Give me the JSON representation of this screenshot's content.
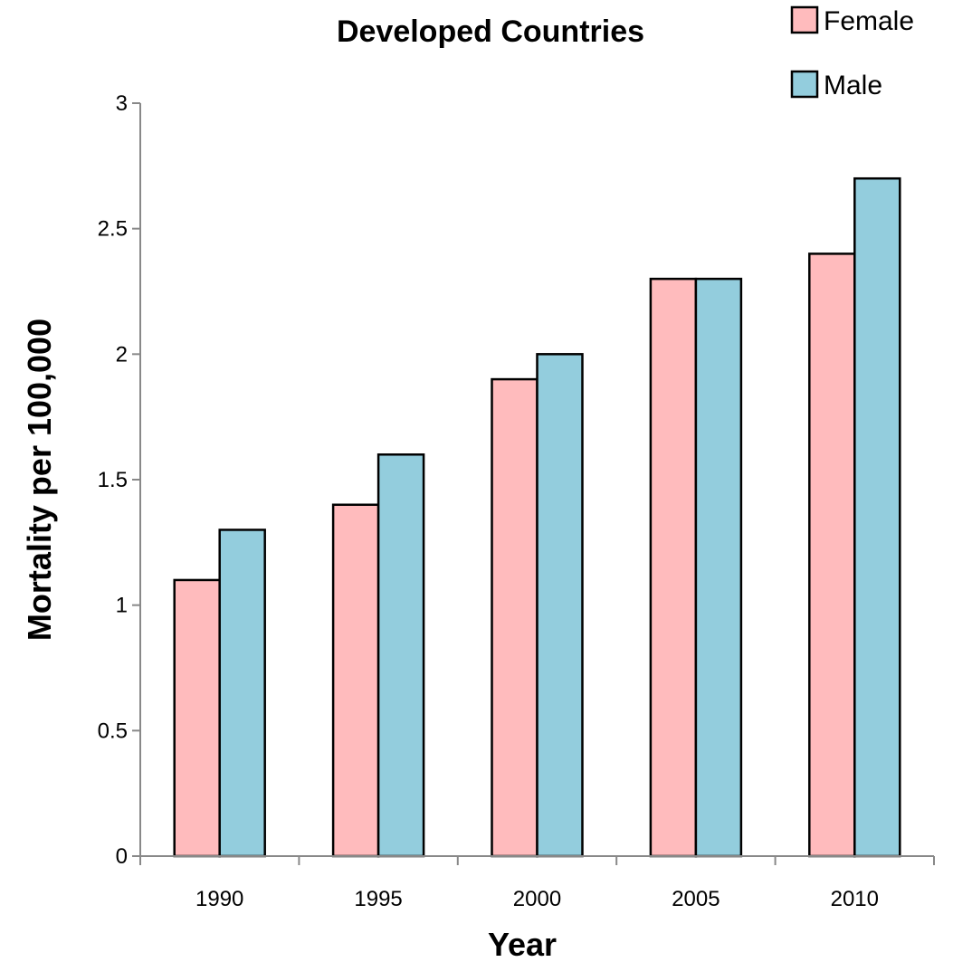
{
  "chart_data": {
    "type": "bar",
    "title": "Developed Countries",
    "xlabel": "Year",
    "ylabel": "Mortality per 100,000",
    "categories": [
      "1990",
      "1995",
      "2000",
      "2005",
      "2010"
    ],
    "series": [
      {
        "name": "Female",
        "values": [
          1.1,
          1.4,
          1.9,
          2.3,
          2.4
        ],
        "color": "#FFBBBD"
      },
      {
        "name": "Male",
        "values": [
          1.3,
          1.6,
          2.0,
          2.3,
          2.7
        ],
        "color": "#93CDDD"
      }
    ],
    "ylim": [
      0,
      3
    ],
    "yticks": [
      "0",
      "0.5",
      "1",
      "1.5",
      "2",
      "2.5",
      "3"
    ],
    "grid": false,
    "legend_position": "top-right"
  }
}
